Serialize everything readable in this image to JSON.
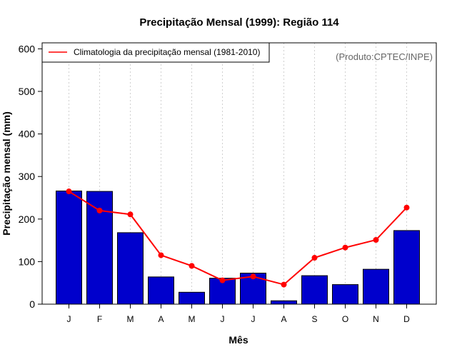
{
  "chart_data": {
    "type": "bar",
    "title": "Precipitação Mensal (1999): Região 114",
    "xlabel": "Mês",
    "ylabel": "Precipitação mensal (mm)",
    "ylim": [
      0,
      620
    ],
    "yticks": [
      0,
      100,
      200,
      300,
      400,
      500,
      600
    ],
    "grid": "vertical-dotted",
    "categories": [
      "J",
      "F",
      "M",
      "A",
      "M",
      "J",
      "J",
      "A",
      "S",
      "O",
      "N",
      "D"
    ],
    "series": [
      {
        "name": "Precipitação mensal (1999)",
        "kind": "bar",
        "color": "#0000CC",
        "values": [
          266,
          265,
          168,
          64,
          28,
          61,
          73,
          8,
          67,
          46,
          82,
          173
        ]
      },
      {
        "name": "Climatologia da precipitação mensal (1981-2010)",
        "kind": "line",
        "color": "#FF0000",
        "values": [
          265,
          220,
          211,
          115,
          90,
          56,
          65,
          46,
          109,
          133,
          151,
          227
        ]
      }
    ],
    "legend": {
      "position": "top-left",
      "entries": [
        "Climatologia da precipitação mensal (1981-2010)"
      ]
    },
    "annotation": "(Produto:CPTEC/INPE)"
  }
}
